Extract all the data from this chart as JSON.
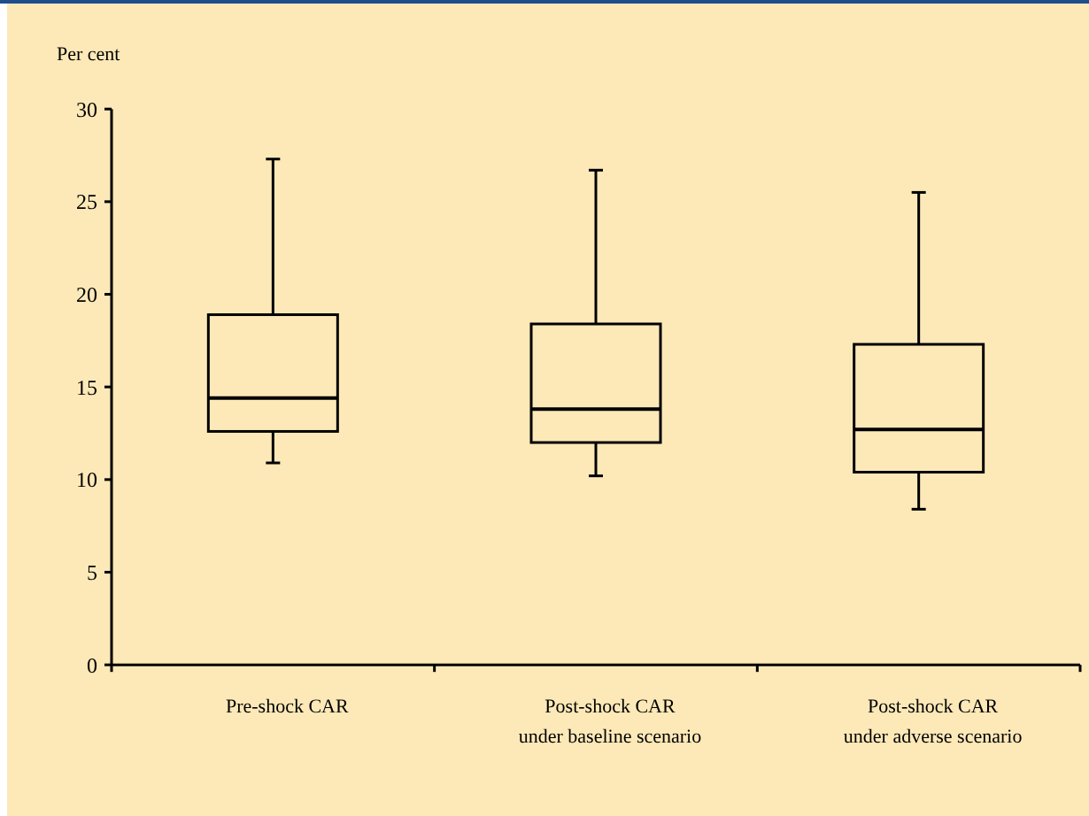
{
  "chart_data": {
    "type": "box",
    "ylabel": "Per cent",
    "categories": [
      "Pre-shock CAR",
      "Post-shock CAR\nunder baseline scenario",
      "Post-shock CAR\nunder adverse scenario"
    ],
    "boxes": [
      {
        "low": 10.9,
        "q1": 12.6,
        "median": 14.4,
        "q3": 18.9,
        "high": 27.3
      },
      {
        "low": 10.2,
        "q1": 12.0,
        "median": 13.8,
        "q3": 18.4,
        "high": 26.7
      },
      {
        "low": 8.4,
        "q1": 10.4,
        "median": 12.7,
        "q3": 17.3,
        "high": 25.5
      }
    ],
    "ylim": [
      0,
      30
    ],
    "yticks": [
      0,
      5,
      10,
      15,
      20,
      25,
      30
    ],
    "grid": false
  }
}
